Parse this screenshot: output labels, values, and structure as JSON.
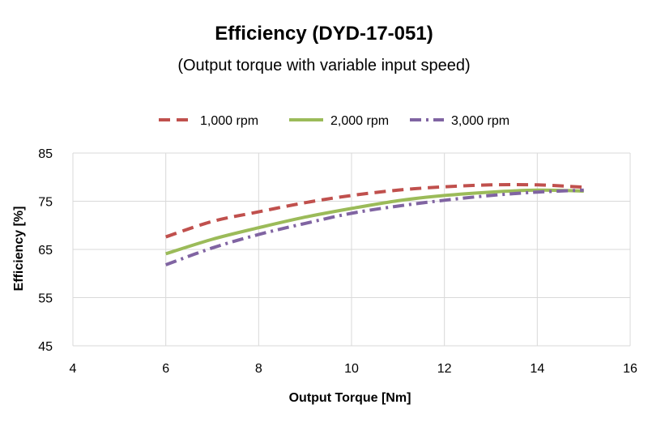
{
  "chart_data": {
    "type": "line",
    "title": "Efficiency (DYD-17-051)",
    "subtitle": "(Output torque with variable input speed)",
    "xlabel": "Output Torque [Nm]",
    "ylabel": "Efficiency [%]",
    "xlim": [
      4,
      16
    ],
    "ylim": [
      45,
      85
    ],
    "xticks": [
      4,
      6,
      8,
      10,
      12,
      14,
      16
    ],
    "yticks": [
      45,
      55,
      65,
      75,
      85
    ],
    "grid": true,
    "legend_position": "top",
    "series": [
      {
        "name": "1,000 rpm",
        "color": "#C0504D",
        "style": "dashed",
        "x": [
          6,
          7,
          8,
          9,
          10,
          11,
          12,
          13,
          14,
          15
        ],
        "y": [
          67.6,
          70.8,
          72.8,
          74.7,
          76.2,
          77.3,
          78.0,
          78.4,
          78.4,
          77.9
        ]
      },
      {
        "name": "2,000 rpm",
        "color": "#9BBB59",
        "style": "solid",
        "x": [
          6,
          7,
          8,
          9,
          10,
          11,
          12,
          13,
          14,
          15
        ],
        "y": [
          64.1,
          67.1,
          69.5,
          71.7,
          73.5,
          75.1,
          76.2,
          76.9,
          77.3,
          77.1
        ]
      },
      {
        "name": "3,000 rpm",
        "color": "#8064A2",
        "style": "dashdot",
        "x": [
          6,
          7,
          8,
          9,
          10,
          11,
          12,
          13,
          14,
          15
        ],
        "y": [
          61.8,
          65.3,
          68.1,
          70.4,
          72.5,
          74.0,
          75.2,
          76.2,
          76.9,
          77.3
        ]
      }
    ]
  }
}
